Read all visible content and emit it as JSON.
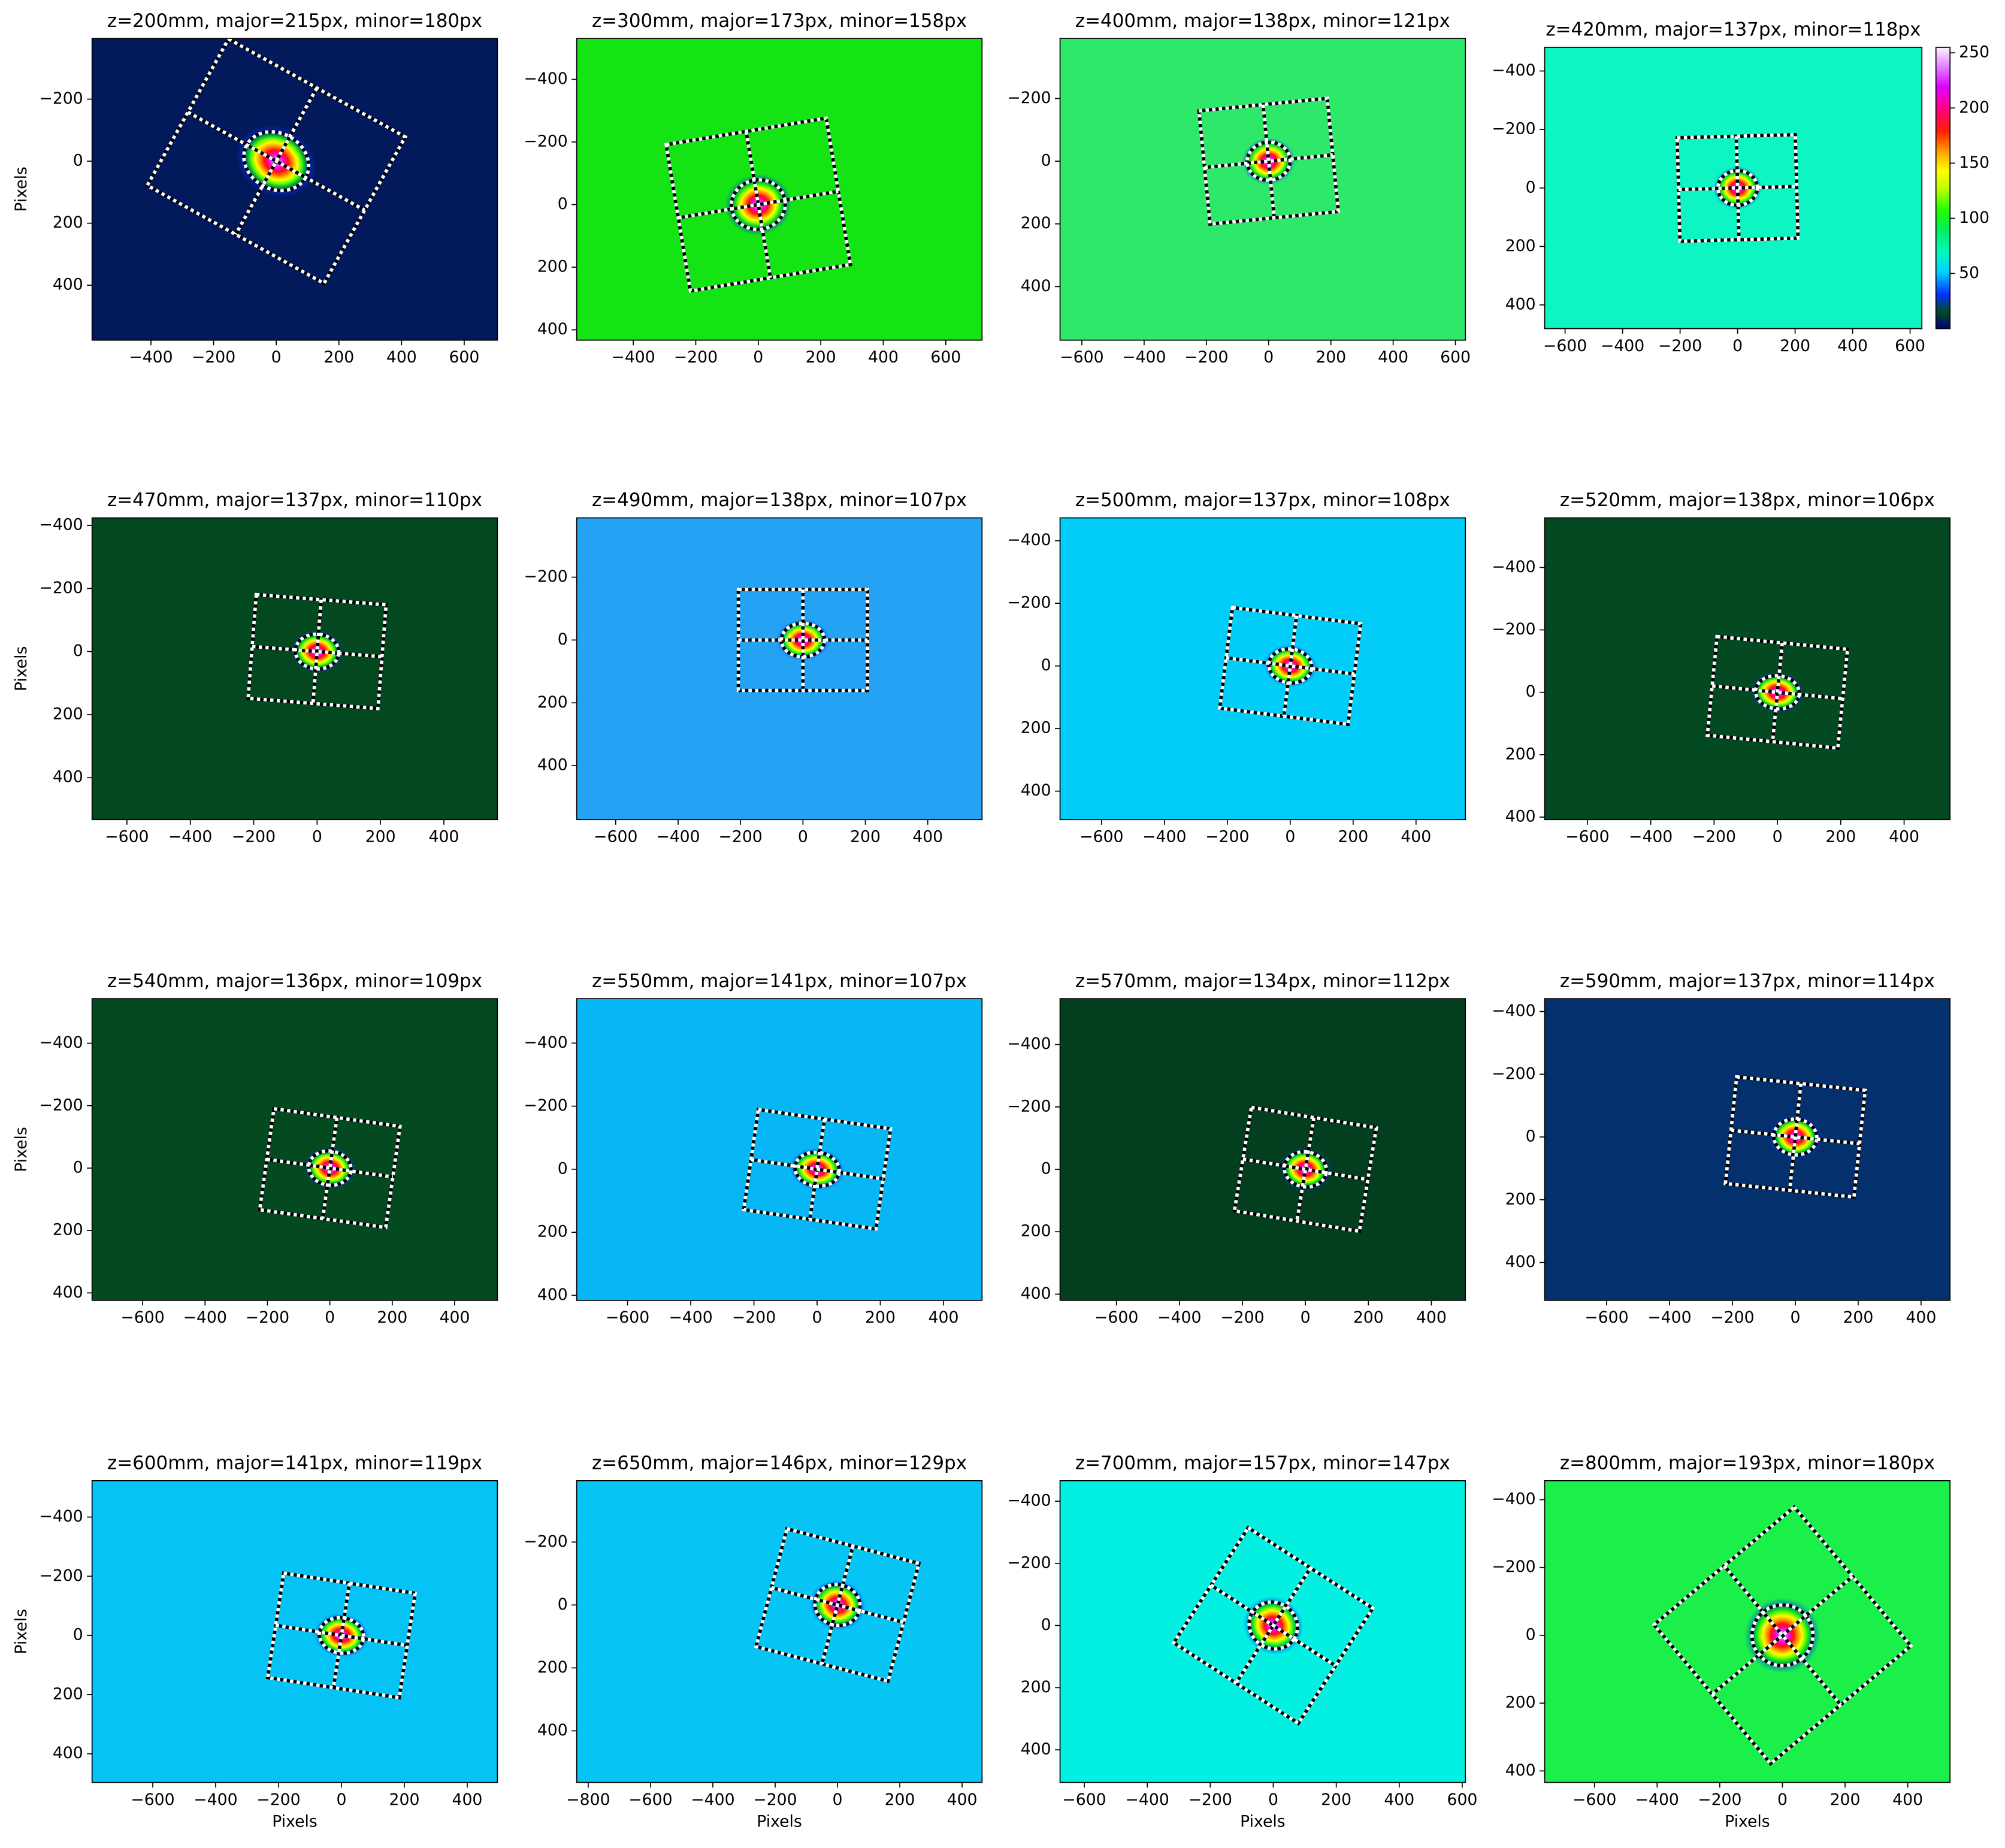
{
  "chart_data": [
    {
      "type": "image",
      "title": "z=200mm, major=215px, minor=180px",
      "color": "#02195c",
      "major": 215,
      "minor": 180,
      "angle": 29,
      "ylabel": "Pixels",
      "xlim": [
        -588,
        706
      ],
      "ylim": [
        577,
        -396
      ],
      "xticks": [
        {
          "value": -400,
          "label": "−400"
        },
        {
          "value": -200,
          "label": "−200"
        },
        0,
        200,
        400,
        600
      ],
      "yticks": [
        {
          "value": -200,
          "label": "−200"
        },
        0,
        200,
        400
      ]
    },
    {
      "type": "image",
      "title": "z=300mm, major=173px, minor=158px",
      "color": "#14e414",
      "major": 173,
      "minor": 158,
      "angle": -9.4,
      "xlim": [
        -581,
        716
      ],
      "ylim": [
        433,
        -531
      ],
      "xticks": [
        {
          "value": -400,
          "label": "−400"
        },
        {
          "value": -200,
          "label": "−200"
        },
        0,
        200,
        400,
        600
      ],
      "yticks": [
        {
          "value": -400,
          "label": "−400"
        },
        {
          "value": -200,
          "label": "−200"
        },
        0,
        200,
        400
      ]
    },
    {
      "type": "image",
      "title": "z=400mm, major=138px, minor=121px",
      "color": "#2ee86a",
      "major": 138,
      "minor": 121,
      "angle": -5.6,
      "xlim": [
        -670,
        632
      ],
      "ylim": [
        571,
        -392
      ],
      "xticks": [
        {
          "value": -600,
          "label": "−600"
        },
        {
          "value": -400,
          "label": "−400"
        },
        {
          "value": -200,
          "label": "−200"
        },
        0,
        200,
        400,
        600
      ],
      "yticks": [
        {
          "value": -200,
          "label": "−200"
        },
        0,
        200,
        400
      ]
    },
    {
      "type": "image",
      "title": "z=420mm, major=137px, minor=118px",
      "color": "#0cf5c2",
      "major": 137,
      "minor": 118,
      "angle": -1.5,
      "xlim": [
        -671,
        641
      ],
      "ylim": [
        481,
        -481
      ],
      "xticks": [
        {
          "value": -600,
          "label": "−600"
        },
        {
          "value": -400,
          "label": "−400"
        },
        {
          "value": -200,
          "label": "−200"
        },
        0,
        200,
        400,
        600
      ],
      "yticks": [
        {
          "value": -400,
          "label": "−400"
        },
        {
          "value": -200,
          "label": "−200"
        },
        0,
        200,
        400
      ],
      "clim": [
        0,
        255
      ],
      "cticks": [
        50,
        100,
        150,
        200,
        250
      ]
    },
    {
      "type": "image",
      "title": "z=470mm, major=137px, minor=110px",
      "color": "#03481f",
      "major": 137,
      "minor": 110,
      "angle": 4.5,
      "ylabel": "Pixels",
      "xlim": [
        -710,
        569
      ],
      "ylim": [
        533,
        -424
      ],
      "xticks": [
        {
          "value": -600,
          "label": "−600"
        },
        {
          "value": -400,
          "label": "−400"
        },
        {
          "value": -200,
          "label": "−200"
        },
        0,
        200,
        400
      ],
      "yticks": [
        {
          "value": -400,
          "label": "−400"
        },
        {
          "value": -200,
          "label": "−200"
        },
        0,
        200,
        400
      ]
    },
    {
      "type": "image",
      "title": "z=490mm, major=138px, minor=107px",
      "color": "#24a3f4",
      "major": 138,
      "minor": 107,
      "angle": 0,
      "xlim": [
        -725,
        574
      ],
      "ylim": [
        572,
        -389
      ],
      "xticks": [
        {
          "value": -600,
          "label": "−600"
        },
        {
          "value": -400,
          "label": "−400"
        },
        {
          "value": -200,
          "label": "−200"
        },
        0,
        200,
        400
      ],
      "yticks": [
        {
          "value": -200,
          "label": "−200"
        },
        0,
        200,
        400
      ]
    },
    {
      "type": "image",
      "title": "z=500mm, major=137px, minor=108px",
      "color": "#02cdf9",
      "major": 137,
      "minor": 108,
      "angle": 7.2,
      "xlim": [
        -732,
        557
      ],
      "ylim": [
        491,
        -473
      ],
      "xticks": [
        {
          "value": -600,
          "label": "−600"
        },
        {
          "value": -400,
          "label": "−400"
        },
        {
          "value": -200,
          "label": "−200"
        },
        0,
        200,
        400
      ],
      "yticks": [
        {
          "value": -400,
          "label": "−400"
        },
        {
          "value": -200,
          "label": "−200"
        },
        0,
        200,
        400
      ]
    },
    {
      "type": "image",
      "title": "z=520mm, major=138px, minor=106px",
      "color": "#034a23",
      "major": 138,
      "minor": 106,
      "angle": 5.6,
      "xlim": [
        -735,
        545
      ],
      "ylim": [
        408,
        -559
      ],
      "xticks": [
        {
          "value": -600,
          "label": "−600"
        },
        {
          "value": -400,
          "label": "−400"
        },
        {
          "value": -200,
          "label": "−200"
        },
        0,
        200,
        400
      ],
      "yticks": [
        {
          "value": -400,
          "label": "−400"
        },
        {
          "value": -200,
          "label": "−200"
        },
        0,
        200,
        400
      ]
    },
    {
      "type": "image",
      "title": "z=540mm, major=136px, minor=109px",
      "color": "#044a21",
      "major": 136,
      "minor": 109,
      "angle": 8,
      "ylabel": "Pixels",
      "xlim": [
        -762,
        537
      ],
      "ylim": [
        424,
        -543
      ],
      "xticks": [
        {
          "value": -600,
          "label": "−600"
        },
        {
          "value": -400,
          "label": "−400"
        },
        {
          "value": -200,
          "label": "−200"
        },
        0,
        200,
        400
      ],
      "yticks": [
        {
          "value": -400,
          "label": "−400"
        },
        {
          "value": -200,
          "label": "−200"
        },
        0,
        200,
        400
      ]
    },
    {
      "type": "image",
      "title": "z=550mm, major=141px, minor=107px",
      "color": "#07b6f4",
      "major": 141,
      "minor": 107,
      "angle": 8.3,
      "xlim": [
        -761,
        522
      ],
      "ylim": [
        416,
        -541
      ],
      "xticks": [
        {
          "value": -600,
          "label": "−600"
        },
        {
          "value": -400,
          "label": "−400"
        },
        {
          "value": -200,
          "label": "−200"
        },
        0,
        200,
        400
      ],
      "yticks": [
        {
          "value": -400,
          "label": "−400"
        },
        {
          "value": -200,
          "label": "−200"
        },
        0,
        200,
        400
      ]
    },
    {
      "type": "image",
      "title": "z=570mm, major=134px, minor=112px",
      "color": "#033f1f",
      "major": 134,
      "minor": 112,
      "angle": 9.3,
      "xlim": [
        -779,
        508
      ],
      "ylim": [
        420,
        -547
      ],
      "xticks": [
        {
          "value": -600,
          "label": "−600"
        },
        {
          "value": -400,
          "label": "−400"
        },
        {
          "value": -200,
          "label": "−200"
        },
        0,
        200,
        400
      ],
      "yticks": [
        {
          "value": -400,
          "label": "−400"
        },
        {
          "value": -200,
          "label": "−200"
        },
        0,
        200,
        400
      ]
    },
    {
      "type": "image",
      "title": "z=590mm, major=137px, minor=114px",
      "color": "#04306e",
      "major": 137,
      "minor": 114,
      "angle": 6,
      "xlim": [
        -797,
        492
      ],
      "ylim": [
        521,
        -441
      ],
      "xticks": [
        {
          "value": -600,
          "label": "−600"
        },
        {
          "value": -400,
          "label": "−400"
        },
        {
          "value": -200,
          "label": "−200"
        },
        0,
        200,
        400
      ],
      "yticks": [
        {
          "value": -400,
          "label": "−400"
        },
        {
          "value": -200,
          "label": "−200"
        },
        0,
        200,
        400
      ]
    },
    {
      "type": "image",
      "title": "z=600mm, major=141px, minor=119px",
      "color": "#05c3f5",
      "major": 141,
      "minor": 119,
      "angle": 8.7,
      "xlabel": "Pixels",
      "ylabel": "Pixels",
      "xlim": [
        -793,
        496
      ],
      "ylim": [
        497,
        -523
      ],
      "xticks": [
        {
          "value": -600,
          "label": "−600"
        },
        {
          "value": -400,
          "label": "−400"
        },
        {
          "value": -200,
          "label": "−200"
        },
        0,
        200,
        400
      ],
      "yticks": [
        {
          "value": -400,
          "label": "−400"
        },
        {
          "value": -200,
          "label": "−200"
        },
        0,
        200,
        400
      ]
    },
    {
      "type": "image",
      "title": "z=650mm, major=146px, minor=129px",
      "color": "#06c5f5",
      "major": 146,
      "minor": 129,
      "angle": 14.7,
      "xlabel": "Pixels",
      "xlim": [
        -837,
        464
      ],
      "ylim": [
        564,
        -395
      ],
      "xticks": [
        {
          "value": -800,
          "label": "−800"
        },
        {
          "value": -600,
          "label": "−600"
        },
        {
          "value": -400,
          "label": "−400"
        },
        {
          "value": -200,
          "label": "−200"
        },
        0,
        200,
        400
      ],
      "yticks": [
        {
          "value": -200,
          "label": "−200"
        },
        0,
        200,
        400
      ]
    },
    {
      "type": "image",
      "title": "z=700mm, major=157px, minor=147px",
      "color": "#02f0e2",
      "major": 157,
      "minor": 147,
      "angle": 32.9,
      "xlabel": "Pixels",
      "xlim": [
        -677,
        610
      ],
      "ylim": [
        505,
        -466
      ],
      "xticks": [
        {
          "value": -600,
          "label": "−600"
        },
        {
          "value": -400,
          "label": "−400"
        },
        {
          "value": -200,
          "label": "−200"
        },
        0,
        200,
        400,
        600
      ],
      "yticks": [
        {
          "value": -400,
          "label": "−400"
        },
        {
          "value": -200,
          "label": "−200"
        },
        0,
        200,
        400
      ]
    },
    {
      "type": "image",
      "title": "z=800mm, major=193px, minor=180px",
      "color": "#1aef4a",
      "major": 193,
      "minor": 180,
      "angle": 50,
      "xlabel": "Pixels",
      "xlim": [
        -759,
        535
      ],
      "ylim": [
        434,
        -456
      ],
      "xticks": [
        {
          "value": -600,
          "label": "−600"
        },
        {
          "value": -400,
          "label": "−400"
        },
        {
          "value": -200,
          "label": "−200"
        },
        0,
        200,
        400
      ],
      "yticks": [
        {
          "value": -400,
          "label": "−400"
        },
        {
          "value": -200,
          "label": "−200"
        },
        0,
        200,
        400
      ]
    }
  ]
}
